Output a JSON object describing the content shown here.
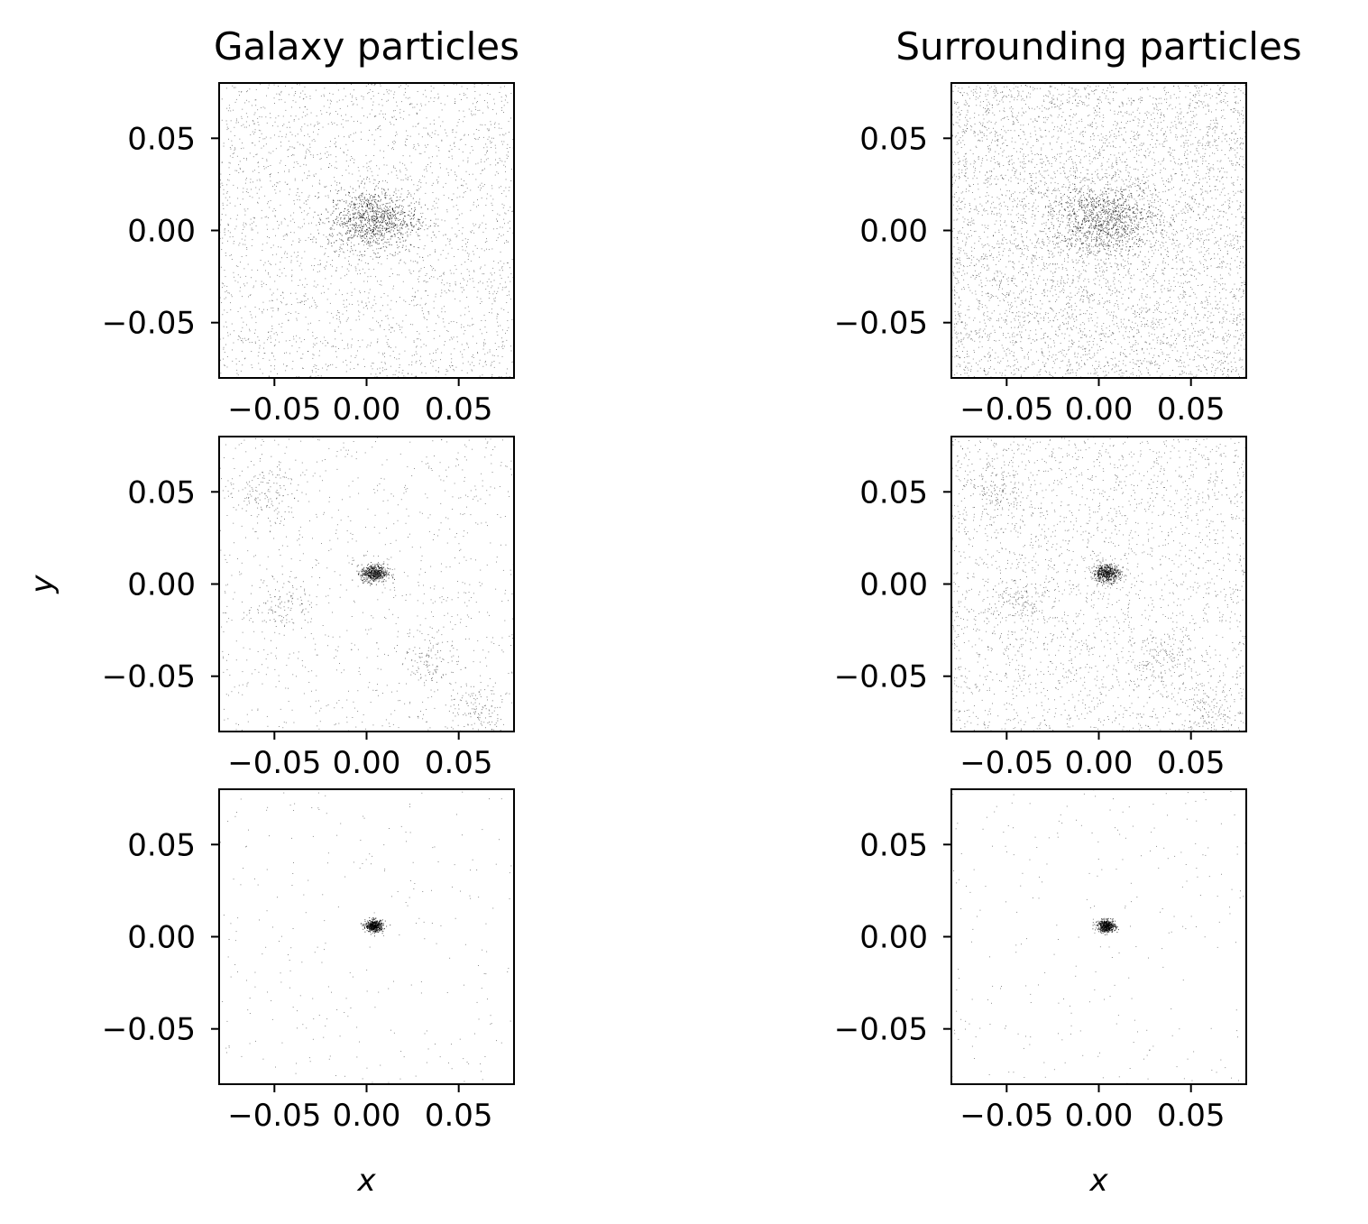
{
  "chart_data": [
    {
      "type": "scatter",
      "panel": "galaxy-row1",
      "title": "Galaxy particles",
      "xlim": [
        -0.08,
        0.08
      ],
      "ylim": [
        -0.08,
        0.08
      ],
      "xticks": [
        -0.05,
        0.0,
        0.05
      ],
      "yticks": [
        0.05,
        0.0,
        -0.05
      ],
      "xticklabels": [
        "−0.05",
        "0.00",
        "0.05"
      ],
      "yticklabels": [
        "0.05",
        "0.00",
        "−0.05"
      ],
      "center": [
        0.003,
        0.006
      ],
      "core_spread": 0.01,
      "background": "uniform, moderate density",
      "xlabel": "",
      "ylabel": ""
    },
    {
      "type": "scatter",
      "panel": "surrounding-row1",
      "title": "Surrounding particles",
      "xlim": [
        -0.08,
        0.08
      ],
      "ylim": [
        -0.08,
        0.08
      ],
      "xticks": [
        -0.05,
        0.0,
        0.05
      ],
      "yticks": [
        0.05,
        0.0,
        -0.05
      ],
      "xticklabels": [
        "−0.05",
        "0.00",
        "0.05"
      ],
      "yticklabels": [
        "0.05",
        "0.00",
        "−0.05"
      ],
      "center": [
        0.003,
        0.006
      ],
      "core_spread": 0.012,
      "background": "uniform, high density",
      "xlabel": "",
      "ylabel": ""
    },
    {
      "type": "scatter",
      "panel": "galaxy-row2",
      "title": "",
      "xlim": [
        -0.08,
        0.08
      ],
      "ylim": [
        -0.08,
        0.08
      ],
      "xticks": [
        -0.05,
        0.0,
        0.05
      ],
      "yticks": [
        0.05,
        0.0,
        -0.05
      ],
      "xticklabels": [
        "−0.05",
        "0.00",
        "0.05"
      ],
      "yticklabels": [
        "0.05",
        "0.00",
        "−0.05"
      ],
      "center": [
        0.004,
        0.006
      ],
      "core_spread": 0.003,
      "clumps": [
        [
          -0.055,
          0.05
        ],
        [
          -0.045,
          -0.01
        ],
        [
          0.035,
          -0.04
        ],
        [
          0.06,
          -0.07
        ]
      ],
      "background": "sparse, filamentary",
      "xlabel": "",
      "ylabel": "y"
    },
    {
      "type": "scatter",
      "panel": "surrounding-row2",
      "title": "",
      "xlim": [
        -0.08,
        0.08
      ],
      "ylim": [
        -0.08,
        0.08
      ],
      "xticks": [
        -0.05,
        0.0,
        0.05
      ],
      "yticks": [
        0.05,
        0.0,
        -0.05
      ],
      "xticklabels": [
        "−0.05",
        "0.00",
        "0.05"
      ],
      "yticklabels": [
        "0.05",
        "0.00",
        "−0.05"
      ],
      "center": [
        0.004,
        0.006
      ],
      "core_spread": 0.003,
      "clumps": [
        [
          -0.055,
          0.05
        ],
        [
          -0.045,
          -0.01
        ],
        [
          0.035,
          -0.04
        ],
        [
          0.06,
          -0.07
        ]
      ],
      "background": "moderate, filamentary",
      "xlabel": "",
      "ylabel": ""
    },
    {
      "type": "scatter",
      "panel": "galaxy-row3",
      "title": "",
      "xlim": [
        -0.08,
        0.08
      ],
      "ylim": [
        -0.08,
        0.08
      ],
      "xticks": [
        -0.05,
        0.0,
        0.05
      ],
      "yticks": [
        0.05,
        0.0,
        -0.05
      ],
      "xticklabels": [
        "−0.05",
        "0.00",
        "0.05"
      ],
      "yticklabels": [
        "0.05",
        "0.00",
        "−0.05"
      ],
      "center": [
        0.004,
        0.006
      ],
      "core_spread": 0.002,
      "background": "very sparse",
      "xlabel": "x",
      "ylabel": ""
    },
    {
      "type": "scatter",
      "panel": "surrounding-row3",
      "title": "",
      "xlim": [
        -0.08,
        0.08
      ],
      "ylim": [
        -0.08,
        0.08
      ],
      "xticks": [
        -0.05,
        0.0,
        0.05
      ],
      "yticks": [
        0.05,
        0.0,
        -0.05
      ],
      "xticklabels": [
        "−0.05",
        "0.00",
        "0.05"
      ],
      "yticklabels": [
        "0.05",
        "0.00",
        "−0.05"
      ],
      "center": [
        0.004,
        0.006
      ],
      "core_spread": 0.002,
      "background": "very sparse",
      "xlabel": "x",
      "ylabel": ""
    }
  ]
}
